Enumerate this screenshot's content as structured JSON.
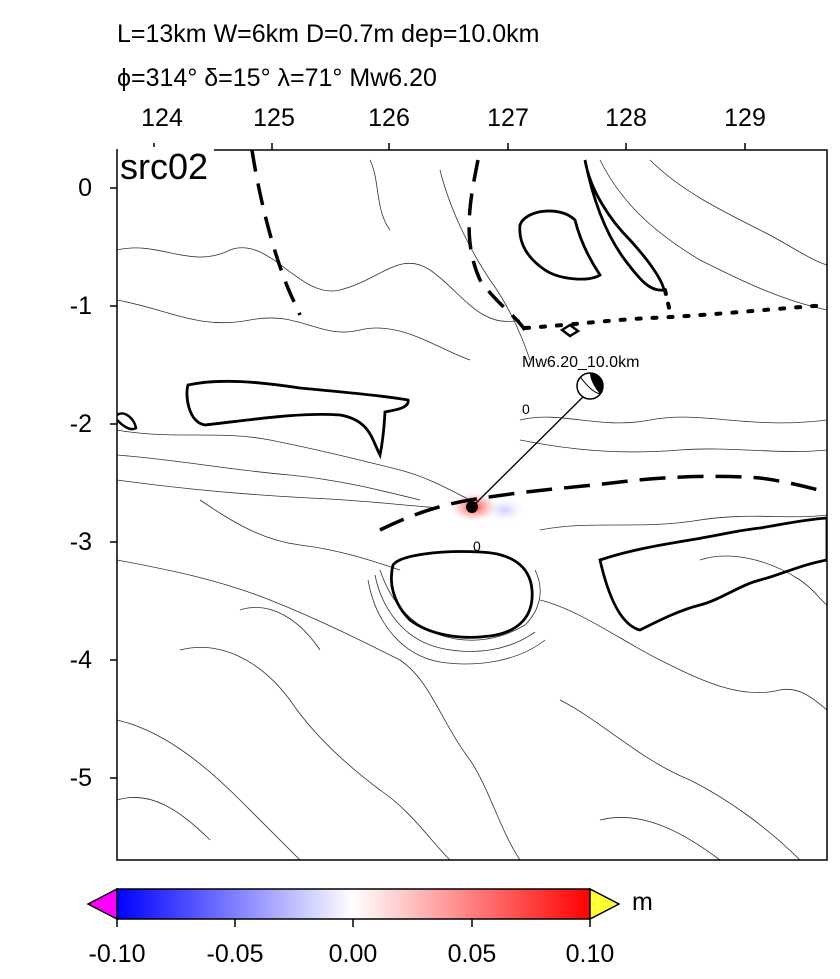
{
  "header": {
    "line1": "L=13km W=6km D=0.7m dep=10.0km",
    "line2": "ϕ=314° δ=15° λ=71° Mw6.20"
  },
  "panel_label": "src02",
  "x_axis": {
    "ticks": [
      "124",
      "125",
      "126",
      "127",
      "128",
      "129"
    ],
    "position": "top"
  },
  "y_axis": {
    "ticks": [
      "0",
      "-1",
      "-2",
      "-3",
      "-4",
      "-5"
    ],
    "position": "left"
  },
  "source": {
    "label": "Mw6.20_10.0km",
    "contour_label_1": "0",
    "contour_label_2": "0"
  },
  "colorbar": {
    "ticks": [
      "-0.10",
      "-0.05",
      "0.00",
      "0.05",
      "0.10"
    ],
    "unit": "m",
    "min": -0.1,
    "max": 0.1,
    "colors": {
      "low": "#0000ff",
      "mid": "#ffffff",
      "high": "#ff0000",
      "under": "#ff00ff",
      "over": "#ffff33"
    }
  }
}
